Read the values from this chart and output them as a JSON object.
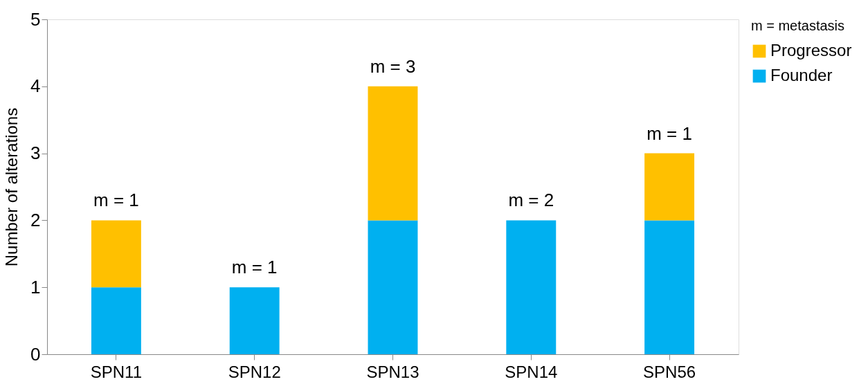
{
  "chart_data": {
    "type": "bar",
    "stacked": true,
    "ylabel": "Number of alterations",
    "legend_title": "m = metastasis",
    "legend": "right",
    "grid": false,
    "categories": [
      "SPN11",
      "SPN12",
      "SPN13",
      "SPN14",
      "SPN56"
    ],
    "series": [
      {
        "name": "Founder",
        "color": "#00b0f0",
        "values": [
          1,
          1,
          2,
          2,
          2
        ]
      },
      {
        "name": "Progressor",
        "color": "#ffc000",
        "values": [
          1,
          null,
          2,
          null,
          1
        ]
      }
    ],
    "ylim": [
      0,
      5
    ],
    "yticks": [
      0,
      1,
      2,
      3,
      4,
      5
    ],
    "annotations": [
      {
        "text": "m = 1",
        "x": "SPN11",
        "y": 2
      },
      {
        "text": "m = 1",
        "x": "SPN12",
        "y": 1
      },
      {
        "text": "m = 3",
        "x": "SPN13",
        "y": 4
      },
      {
        "text": "m = 2",
        "x": "SPN14",
        "y": 2
      },
      {
        "text": "m = 1",
        "x": "SPN56",
        "y": 3
      }
    ]
  }
}
